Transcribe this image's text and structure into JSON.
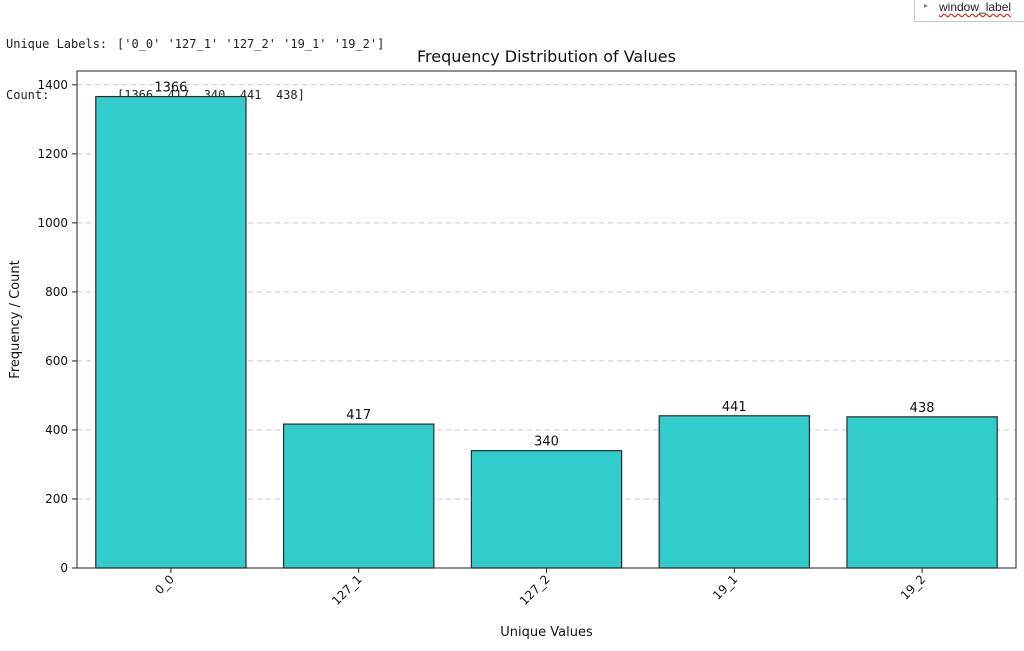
{
  "console": {
    "line1_key": "Unique Labels:",
    "line1_value": "['0_0' '127_1' '127_2' '19_1' '19_2']",
    "line2_key": "Count:",
    "line2_value": "[1366  417  340  441  438]"
  },
  "side_panel": {
    "label": "window_label"
  },
  "chart_data": {
    "type": "bar",
    "title": "Frequency Distribution of Values",
    "xlabel": "Unique Values",
    "ylabel": "Frequency / Count",
    "categories": [
      "0_0",
      "127_1",
      "127_2",
      "19_1",
      "19_2"
    ],
    "values": [
      1366,
      417,
      340,
      441,
      438
    ],
    "ylim": [
      0,
      1440
    ],
    "yticks": [
      0,
      200,
      400,
      600,
      800,
      1000,
      1200,
      1400
    ],
    "grid": "y-dashed",
    "bar_color": "#33cccc",
    "bar_edge_color": "#2b2b2b",
    "legend": "none"
  }
}
